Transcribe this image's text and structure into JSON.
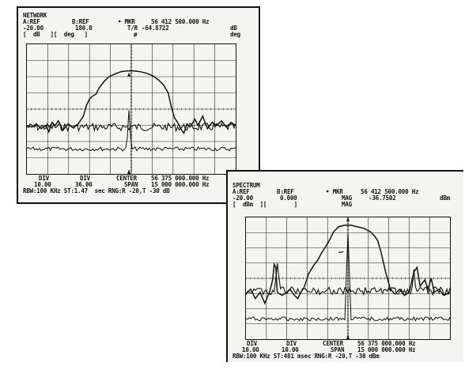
{
  "network": {
    "title": "NETWORK",
    "a_ref_label": "A:REF",
    "b_ref_label": "B:REF",
    "mkr_label": "• MKR",
    "mkr_value": "56 412 500.000 Hz",
    "a_ref_value": "-20.00",
    "b_ref_value": "180.0",
    "tr_label": "T/R",
    "tr_value": "-64.8722",
    "tr_unit": "dB",
    "unit_row_left": "[  dB   ][  deg   ]",
    "unit_row_phi": "ø",
    "unit_row_right": "deg",
    "div_label_a": "DIV",
    "div_label_b": "DIV",
    "center_label": "CENTER",
    "center_value": "56 375 000.000 Hz",
    "div_value_a": "10.00",
    "div_value_b": "36.00",
    "span_label": "SPAN",
    "span_value": "15 000 000.000 Hz",
    "status_line": "RBW:100 KHz ST:1.47  sec RNG:R -20,T -30 dB"
  },
  "spectrum": {
    "title": "SPECTRUM",
    "a_ref_label": "A:REF",
    "b_ref_label": "B:REF",
    "mkr_label": "• MKR",
    "mkr_value": "56 412 500.000 Hz",
    "a_ref_value": "-20.00",
    "b_ref_value": "0.000",
    "mag_label": "MAG",
    "mag_value": "-36.7502",
    "mag_unit": "dBm",
    "unit_row_left": "[  dBm  ][        ]",
    "unit_row_mag": "MAG",
    "div_label_a": "DIV",
    "div_label_b": "DIV",
    "center_label": "CENTER",
    "center_value": "56 375 000.000 Hz",
    "div_value_a": "10.00",
    "div_value_b": "10.00",
    "span_label": "SPAN",
    "span_value": "15 000 000.000 Hz",
    "status_line": "RBW:100 KHz ST:481 msec RNG:R -20,T -30 dBm"
  }
}
